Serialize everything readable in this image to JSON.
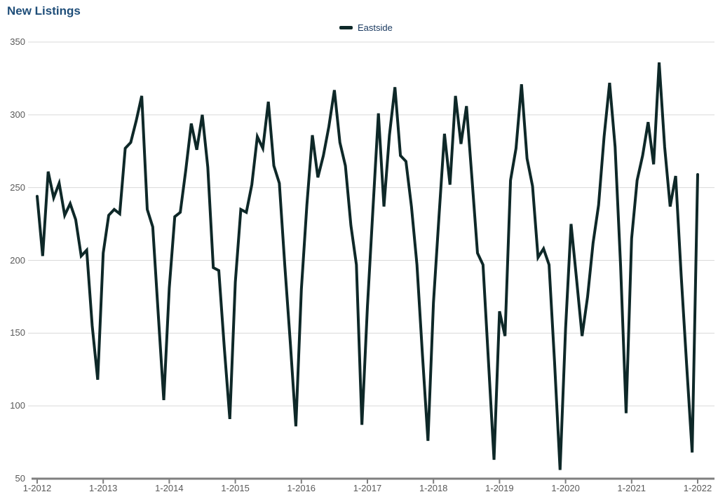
{
  "header": {
    "title": "New Listings"
  },
  "legend": {
    "series_label": "Eastside"
  },
  "colors": {
    "line": "#0e2828",
    "title_text": "#1f4e79",
    "legend_text": "#17375e",
    "axis_text": "#595959",
    "gridline": "#d9d9d9",
    "axis_line": "#7f7f7f"
  },
  "chart_data": {
    "type": "line",
    "title": "New Listings",
    "xlabel": "",
    "ylabel": "",
    "legend_position": "top-center",
    "grid": "horizontal",
    "ylim": [
      50,
      350
    ],
    "y_ticks": [
      50,
      100,
      150,
      200,
      250,
      300,
      350
    ],
    "x_tick_labels": [
      "1-2012",
      "1-2013",
      "1-2014",
      "1-2015",
      "1-2016",
      "1-2017",
      "1-2018",
      "1-2019",
      "1-2020",
      "1-2021",
      "1-2022"
    ],
    "x_start": "2012-01",
    "x_end": "2022-01",
    "x_interval": "monthly",
    "series": [
      {
        "name": "Eastside",
        "values": [
          244,
          203,
          261,
          243,
          253,
          231,
          239,
          228,
          203,
          207,
          155,
          118,
          205,
          231,
          235,
          232,
          277,
          281,
          296,
          313,
          235,
          223,
          163,
          104,
          181,
          230,
          233,
          262,
          294,
          276,
          300,
          264,
          195,
          193,
          140,
          91,
          185,
          235,
          233,
          252,
          285,
          277,
          309,
          265,
          253,
          196,
          143,
          86,
          180,
          238,
          286,
          257,
          272,
          292,
          317,
          281,
          265,
          224,
          197,
          87,
          168,
          235,
          301,
          237,
          286,
          319,
          272,
          268,
          237,
          197,
          135,
          76,
          171,
          230,
          287,
          252,
          313,
          280,
          306,
          256,
          205,
          197,
          130,
          63,
          165,
          148,
          255,
          277,
          321,
          270,
          251,
          202,
          208,
          197,
          130,
          56,
          153,
          225,
          187,
          148,
          175,
          212,
          238,
          285,
          322,
          278,
          196,
          95,
          215,
          255,
          272,
          295,
          266,
          336,
          278,
          237,
          258,
          190,
          128,
          68,
          259
        ]
      }
    ]
  }
}
